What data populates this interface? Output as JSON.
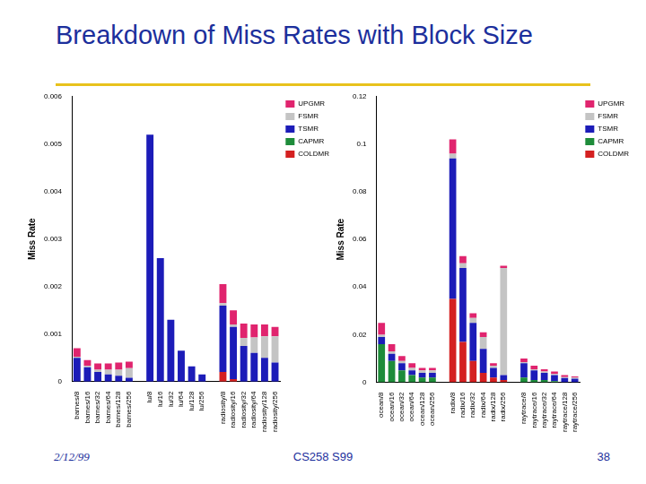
{
  "slide": {
    "title": "Breakdown of Miss Rates with Block Size",
    "footer": {
      "date": "2/12/99",
      "course": "CS258 S99",
      "page": "38"
    }
  },
  "chart_data": [
    {
      "type": "bar",
      "ylabel": "Miss Rate",
      "stacked": true,
      "grid": false,
      "legend": "right",
      "categories": [
        "barnes/8",
        "barnes/16",
        "barnes/32",
        "barnes/64",
        "barnes/128",
        "barnes/256",
        null,
        "lu/8",
        "lu/16",
        "lu/32",
        "lu/64",
        "lu/128",
        "lu/256",
        null,
        "radiosity/8",
        "radiosity/16",
        "radiosity/32",
        "radiosity/64",
        "radiosity/128",
        "radiosity/256"
      ],
      "ylim": [
        0,
        0.006
      ],
      "yticks": [
        0,
        0.001,
        0.002,
        0.003,
        0.004,
        0.005,
        0.006
      ],
      "series": [
        {
          "name": "COLDMR",
          "color": "#d42020",
          "values": [
            0,
            0,
            0,
            0,
            0,
            0,
            null,
            0,
            0,
            0,
            0,
            0,
            0,
            null,
            0.0002,
            5e-05,
            0,
            0,
            0,
            0
          ]
        },
        {
          "name": "CAPMR",
          "color": "#1e8c3a",
          "values": [
            0,
            0,
            0,
            0,
            0,
            0,
            null,
            0,
            0,
            0,
            0,
            0,
            0,
            null,
            0,
            0,
            0,
            0,
            0,
            0
          ]
        },
        {
          "name": "TSMR",
          "color": "#1c1cb8",
          "values": [
            0.0005,
            0.0003,
            0.0002,
            0.00015,
            0.00012,
            8e-05,
            null,
            0.0052,
            0.0026,
            0.0013,
            0.00065,
            0.00032,
            0.00015,
            null,
            0.0014,
            0.0011,
            0.00075,
            0.0006,
            0.0005,
            0.0004
          ]
        },
        {
          "name": "FSMR",
          "color": "#c4c4c4",
          "values": [
            2e-05,
            3e-05,
            5e-05,
            0.0001,
            0.00013,
            0.0002,
            null,
            0,
            0,
            0,
            0,
            0,
            0,
            null,
            5e-05,
            5e-05,
            0.00017,
            0.00033,
            0.00045,
            0.00055
          ]
        },
        {
          "name": "UPGMR",
          "color": "#e0246e",
          "values": [
            0.00018,
            0.00012,
            0.00013,
            0.00013,
            0.00015,
            0.00014,
            null,
            0,
            0,
            0,
            0,
            0,
            0,
            null,
            0.0004,
            0.0003,
            0.0003,
            0.00027,
            0.00025,
            0.0002
          ]
        }
      ]
    },
    {
      "type": "bar",
      "ylabel": "Miss Rate",
      "stacked": true,
      "grid": false,
      "legend": "right",
      "categories": [
        "ocean/8",
        "ocean/16",
        "ocean/32",
        "ocean/64",
        "ocean/128",
        "ocean/256",
        null,
        "radix/8",
        "radix/16",
        "radix/32",
        "radix/64",
        "radix/128",
        "radix/256",
        null,
        "raytrace/8",
        "raytrace/16",
        "raytrace/32",
        "raytrace/64",
        "raytrace/128",
        "raytrace/256"
      ],
      "ylim": [
        0,
        0.12
      ],
      "yticks": [
        0,
        0.02,
        0.04,
        0.06,
        0.08,
        0.1,
        0.12
      ],
      "series": [
        {
          "name": "COLDMR",
          "color": "#d42020",
          "values": [
            0,
            0,
            0,
            0,
            0,
            0,
            null,
            0.035,
            0.017,
            0.009,
            0.004,
            0.002,
            0.001,
            null,
            0,
            0,
            0,
            0,
            0,
            0
          ]
        },
        {
          "name": "CAPMR",
          "color": "#1e8c3a",
          "values": [
            0.016,
            0.009,
            0.005,
            0.003,
            0.002,
            0.002,
            null,
            0,
            0,
            0,
            0,
            0,
            0,
            null,
            0.002,
            0.001,
            0.001,
            0.0005,
            0,
            0
          ]
        },
        {
          "name": "TSMR",
          "color": "#1c1cb8",
          "values": [
            0.003,
            0.003,
            0.003,
            0.002,
            0.002,
            0.002,
            null,
            0.059,
            0.031,
            0.016,
            0.01,
            0.004,
            0.002,
            null,
            0.006,
            0.004,
            0.003,
            0.0025,
            0.0018,
            0.0015
          ]
        },
        {
          "name": "FSMR",
          "color": "#c4c4c4",
          "values": [
            0.001,
            0.001,
            0.001,
            0.001,
            0.001,
            0.001,
            null,
            0.002,
            0.002,
            0.002,
            0.005,
            0.001,
            0.045,
            null,
            0.0005,
            0.0005,
            0.0005,
            0.0005,
            0.0004,
            0.0005
          ]
        },
        {
          "name": "UPGMR",
          "color": "#e0246e",
          "values": [
            0.005,
            0.003,
            0.002,
            0.002,
            0.001,
            0.001,
            null,
            0.006,
            0.003,
            0.002,
            0.002,
            0.001,
            0.001,
            null,
            0.0015,
            0.0015,
            0.001,
            0.001,
            0.0008,
            0.0005
          ]
        }
      ]
    }
  ]
}
